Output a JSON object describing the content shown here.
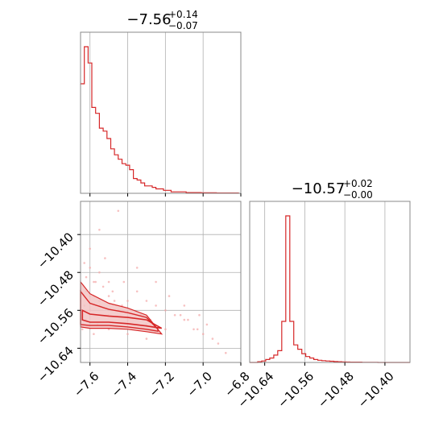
{
  "colors": {
    "accent": "#d62728",
    "grid": "#b0b0b0",
    "axis": "#888888",
    "scatter": "#f4a6a6"
  },
  "chart_data": [
    {
      "type": "histogram",
      "panel": "top-left",
      "title_center": "−7.56",
      "title_plus": "+0.14",
      "title_minus": "−0.07",
      "xlim": [
        -7.65,
        -6.8
      ],
      "xticks": [
        -7.6,
        -7.4,
        -7.2,
        -7.0,
        -6.8
      ],
      "grid": true,
      "bin_edges": [
        -7.65,
        -7.63,
        -7.61,
        -7.59,
        -7.57,
        -7.55,
        -7.53,
        -7.51,
        -7.49,
        -7.47,
        -7.45,
        -7.43,
        -7.41,
        -7.39,
        -7.37,
        -7.35,
        -7.33,
        -7.31,
        -7.29,
        -7.27,
        -7.25,
        -7.23,
        -7.21,
        -7.19,
        -7.17,
        -7.15,
        -7.13,
        -7.11,
        -7.09,
        -7.07,
        -7.05,
        -7.03,
        -7.01,
        -6.99,
        -6.97,
        -6.95,
        -6.93,
        -6.91,
        -6.89,
        -6.87,
        -6.85,
        -6.83,
        -6.81
      ],
      "counts": [
        0.74,
        0.99,
        0.88,
        0.58,
        0.54,
        0.44,
        0.42,
        0.37,
        0.3,
        0.26,
        0.23,
        0.2,
        0.19,
        0.16,
        0.1,
        0.09,
        0.07,
        0.05,
        0.05,
        0.04,
        0.03,
        0.03,
        0.02,
        0.02,
        0.01,
        0.01,
        0.01,
        0.01,
        0.005,
        0.005,
        0.005,
        0.005,
        0.003,
        0.003,
        0.003,
        0.003,
        0.002,
        0.002,
        0.002,
        0.002,
        0.002,
        0.002
      ]
    },
    {
      "type": "scatter",
      "panel": "bottom-left",
      "xlim": [
        -7.65,
        -6.8
      ],
      "ylim": [
        -10.67,
        -10.33
      ],
      "xticks": [
        -7.6,
        -7.4,
        -7.2,
        -7.0,
        -6.8
      ],
      "yticks": [
        -10.4,
        -10.48,
        -10.56,
        -10.64
      ],
      "xtick_labels": [
        "−7.6",
        "−7.4",
        "−7.2",
        "−7.0",
        "−6.8"
      ],
      "ytick_labels": [
        "−10.40",
        "−10.48",
        "−10.56",
        "−10.64"
      ],
      "grid": true,
      "points": [
        [
          -7.45,
          -10.35
        ],
        [
          -7.6,
          -10.43
        ],
        [
          -7.52,
          -10.45
        ],
        [
          -7.55,
          -10.48
        ],
        [
          -7.62,
          -10.49
        ],
        [
          -7.5,
          -10.5
        ],
        [
          -7.42,
          -10.5
        ],
        [
          -7.58,
          -10.5
        ],
        [
          -7.48,
          -10.52
        ],
        [
          -7.35,
          -10.52
        ],
        [
          -7.6,
          -10.53
        ],
        [
          -7.4,
          -10.54
        ],
        [
          -7.3,
          -10.54
        ],
        [
          -7.55,
          -10.55
        ],
        [
          -7.25,
          -10.55
        ],
        [
          -7.45,
          -10.56
        ],
        [
          -7.2,
          -10.56
        ],
        [
          -7.15,
          -10.57
        ],
        [
          -7.12,
          -10.57
        ],
        [
          -7.1,
          -10.58
        ],
        [
          -7.08,
          -10.58
        ],
        [
          -7.05,
          -10.6
        ],
        [
          -7.03,
          -10.6
        ],
        [
          -7.0,
          -10.61
        ],
        [
          -6.95,
          -10.62
        ],
        [
          -6.92,
          -10.63
        ],
        [
          -6.88,
          -10.65
        ],
        [
          -7.63,
          -10.46
        ],
        [
          -7.6,
          -10.47
        ],
        [
          -7.57,
          -10.5
        ],
        [
          -7.53,
          -10.51
        ],
        [
          -7.5,
          -10.53
        ],
        [
          -7.47,
          -10.54
        ],
        [
          -7.43,
          -10.55
        ],
        [
          -7.38,
          -10.56
        ],
        [
          -7.33,
          -10.57
        ],
        [
          -7.28,
          -10.58
        ],
        [
          -7.62,
          -10.52
        ],
        [
          -7.58,
          -10.53
        ],
        [
          -7.55,
          -10.54
        ],
        [
          -7.63,
          -10.55
        ],
        [
          -7.6,
          -10.56
        ],
        [
          -7.5,
          -10.57
        ],
        [
          -7.4,
          -10.58
        ],
        [
          -7.3,
          -10.59
        ],
        [
          -7.2,
          -10.6
        ],
        [
          -7.62,
          -10.58
        ],
        [
          -7.56,
          -10.59
        ],
        [
          -7.5,
          -10.6
        ],
        [
          -7.4,
          -10.61
        ],
        [
          -7.3,
          -10.62
        ],
        [
          -7.64,
          -10.6
        ],
        [
          -7.58,
          -10.61
        ],
        [
          -7.55,
          -10.39
        ],
        [
          -7.35,
          -10.47
        ],
        [
          -7.25,
          -10.5
        ],
        [
          -7.18,
          -10.53
        ],
        [
          -7.1,
          -10.55
        ],
        [
          -7.02,
          -10.57
        ],
        [
          -6.98,
          -10.59
        ]
      ],
      "contour_levels": [
        [
          [
            -7.64,
            -10.58
          ],
          [
            -7.6,
            -10.585
          ],
          [
            -7.5,
            -10.585
          ],
          [
            -7.4,
            -10.588
          ],
          [
            -7.3,
            -10.593
          ],
          [
            -7.22,
            -10.598
          ],
          [
            -7.22,
            -10.598
          ],
          [
            -7.3,
            -10.58
          ],
          [
            -7.4,
            -10.575
          ],
          [
            -7.5,
            -10.572
          ],
          [
            -7.6,
            -10.568
          ],
          [
            -7.64,
            -10.56
          ]
        ],
        [
          [
            -7.65,
            -10.59
          ],
          [
            -7.6,
            -10.592
          ],
          [
            -7.5,
            -10.592
          ],
          [
            -7.4,
            -10.595
          ],
          [
            -7.3,
            -10.6
          ],
          [
            -7.24,
            -10.604
          ],
          [
            -7.24,
            -10.6
          ],
          [
            -7.3,
            -10.575
          ],
          [
            -7.4,
            -10.565
          ],
          [
            -7.5,
            -10.558
          ],
          [
            -7.6,
            -10.545
          ],
          [
            -7.65,
            -10.52
          ]
        ],
        [
          [
            -7.65,
            -10.595
          ],
          [
            -7.6,
            -10.598
          ],
          [
            -7.5,
            -10.598
          ],
          [
            -7.4,
            -10.6
          ],
          [
            -7.3,
            -10.605
          ],
          [
            -7.22,
            -10.61
          ],
          [
            -7.24,
            -10.6
          ],
          [
            -7.3,
            -10.57
          ],
          [
            -7.4,
            -10.555
          ],
          [
            -7.5,
            -10.545
          ],
          [
            -7.6,
            -10.525
          ],
          [
            -7.65,
            -10.5
          ]
        ]
      ]
    },
    {
      "type": "histogram",
      "panel": "bottom-right",
      "title_center": "−10.57",
      "title_plus": "+0.02",
      "title_minus": "−0.00",
      "xlim": [
        -10.67,
        -10.35
      ],
      "xticks": [
        -10.64,
        -10.56,
        -10.48,
        -10.4
      ],
      "xtick_labels": [
        "−10.64",
        "−10.56",
        "−10.48",
        "−10.40"
      ],
      "grid": true,
      "bin_edges": [
        -10.67,
        -10.662,
        -10.654,
        -10.646,
        -10.638,
        -10.63,
        -10.622,
        -10.614,
        -10.606,
        -10.598,
        -10.59,
        -10.582,
        -10.574,
        -10.566,
        -10.558,
        -10.55,
        -10.542,
        -10.534,
        -10.526,
        -10.518,
        -10.51,
        -10.502,
        -10.494,
        -10.486,
        -10.478,
        -10.47,
        -10.462,
        -10.454,
        -10.446,
        -10.438,
        -10.43,
        -10.422,
        -10.414,
        -10.406,
        -10.398,
        -10.39,
        -10.382,
        -10.374,
        -10.366,
        -10.358,
        -10.35
      ],
      "counts": [
        0.0,
        0.0,
        0.005,
        0.01,
        0.02,
        0.03,
        0.05,
        0.08,
        0.28,
        1.0,
        0.28,
        0.12,
        0.09,
        0.06,
        0.04,
        0.03,
        0.02,
        0.015,
        0.012,
        0.01,
        0.008,
        0.006,
        0.005,
        0.004,
        0.003,
        0.002,
        0.002,
        0.002,
        0.001,
        0.001,
        0.001,
        0.001,
        0.0,
        0.0,
        0.0,
        0.0,
        0.0,
        0.0,
        0.0,
        0.0
      ]
    }
  ]
}
